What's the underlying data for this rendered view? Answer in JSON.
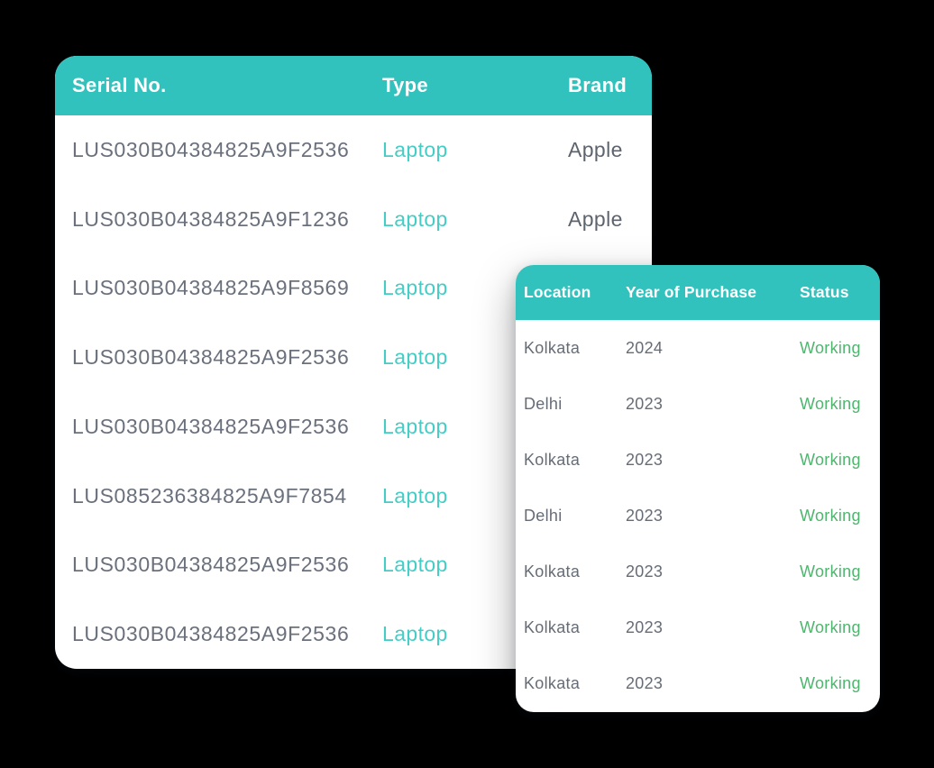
{
  "background_color": "#000000",
  "colors": {
    "header_teal": "#31c2be",
    "type_text_teal": "#45cdc5",
    "status_green": "#4fb56f",
    "serial_text_gray": "#6a707c",
    "brand_text_gray": "#5e646e",
    "card_background": "#ffffff",
    "header_text": "#ffffff"
  },
  "left_table": {
    "columns": [
      "Serial No.",
      "Type",
      "Brand"
    ],
    "rows": [
      {
        "serial_no": "LUS030B04384825A9F2536",
        "type": "Laptop",
        "brand": "Apple"
      },
      {
        "serial_no": "LUS030B04384825A9F1236",
        "type": "Laptop",
        "brand": "Apple"
      },
      {
        "serial_no": "LUS030B04384825A9F8569",
        "type": "Laptop",
        "brand": ""
      },
      {
        "serial_no": "LUS030B04384825A9F2536",
        "type": "Laptop",
        "brand": ""
      },
      {
        "serial_no": "LUS030B04384825A9F2536",
        "type": "Laptop",
        "brand": ""
      },
      {
        "serial_no": "LUS085236384825A9F7854",
        "type": "Laptop",
        "brand": ""
      },
      {
        "serial_no": "LUS030B04384825A9F2536",
        "type": "Laptop",
        "brand": ""
      },
      {
        "serial_no": "LUS030B04384825A9F2536",
        "type": "Laptop",
        "brand": ""
      }
    ]
  },
  "right_table": {
    "columns": [
      "Location",
      "Year of Purchase",
      "Status"
    ],
    "rows": [
      {
        "location": "Kolkata",
        "year_of_purchase": "2024",
        "status": "Working"
      },
      {
        "location": "Delhi",
        "year_of_purchase": "2023",
        "status": "Working"
      },
      {
        "location": "Kolkata",
        "year_of_purchase": "2023",
        "status": "Working"
      },
      {
        "location": "Delhi",
        "year_of_purchase": "2023",
        "status": "Working"
      },
      {
        "location": "Kolkata",
        "year_of_purchase": "2023",
        "status": "Working"
      },
      {
        "location": "Kolkata",
        "year_of_purchase": "2023",
        "status": "Working"
      },
      {
        "location": "Kolkata",
        "year_of_purchase": "2023",
        "status": "Working"
      }
    ]
  }
}
